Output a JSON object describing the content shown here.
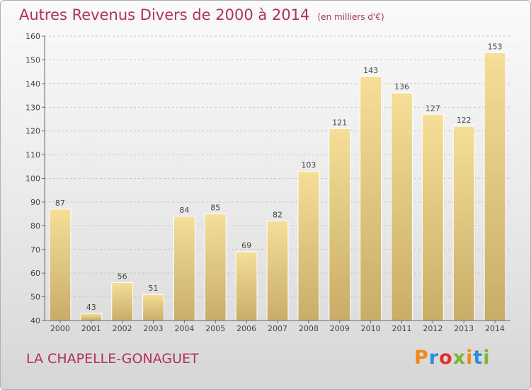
{
  "title": "Autres Revenus Divers de 2000 à 2014",
  "subtitle": "(en milliers d'€)",
  "place": "LA CHAPELLE-GONAGUET",
  "logo": {
    "text": "Proxiti",
    "colors": [
      "#f18a1d",
      "#2a8fd8",
      "#e2332b",
      "#7ab535",
      "#f18a1d",
      "#2a8fd8",
      "#7ab535"
    ]
  },
  "chart_data": {
    "type": "bar",
    "title": "Autres Revenus Divers de 2000 à 2014",
    "subtitle": "(en milliers d'€)",
    "xlabel": "",
    "ylabel": "",
    "categories": [
      "2000",
      "2001",
      "2002",
      "2003",
      "2004",
      "2005",
      "2006",
      "2007",
      "2008",
      "2009",
      "2010",
      "2011",
      "2012",
      "2013",
      "2014"
    ],
    "values": [
      87,
      43,
      56,
      51,
      84,
      85,
      69,
      82,
      103,
      121,
      143,
      136,
      127,
      122,
      153
    ],
    "ylim": [
      40,
      160
    ],
    "yticks": [
      40,
      50,
      60,
      70,
      80,
      90,
      100,
      110,
      120,
      130,
      140,
      150,
      160
    ],
    "grid": true,
    "bar_color": "#e8cf8a"
  }
}
